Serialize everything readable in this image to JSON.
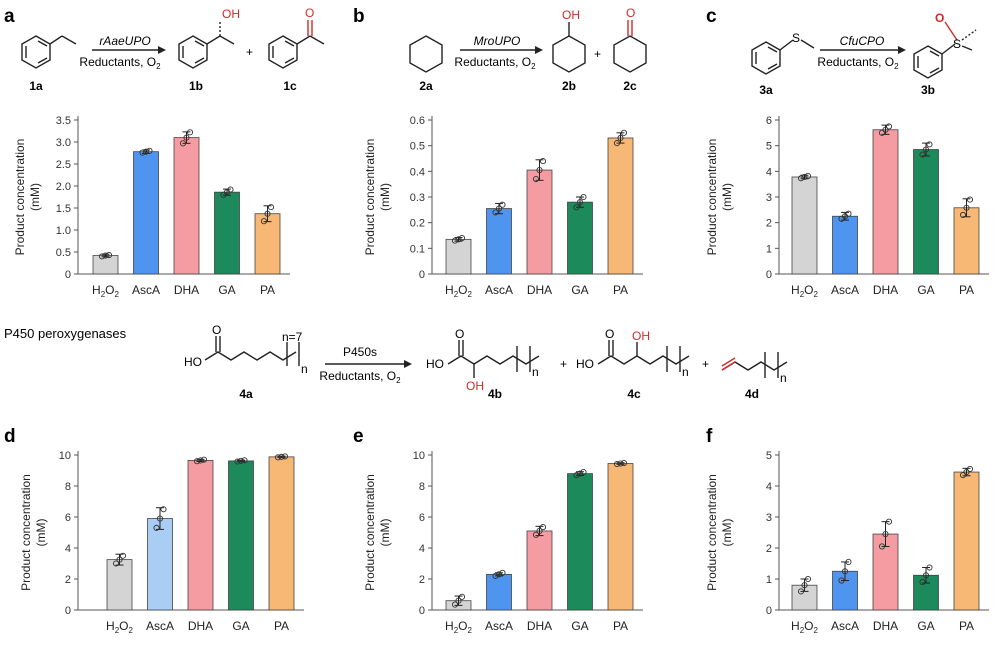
{
  "figure": {
    "panel_letters": [
      "a",
      "b",
      "c",
      "d",
      "e",
      "f"
    ],
    "section_label": "P450 peroxygenases",
    "colors": {
      "H2O2": "#d4d4d4",
      "AscA": "#4f94ef",
      "AscA_light": "#a9cdf5",
      "DHA": "#f59ca2",
      "GA": "#1c8a5a",
      "PA": "#f7b775",
      "red": "#d22a2a"
    }
  },
  "schemes": {
    "a": {
      "enzyme": "rAaeUPO",
      "reductants": "Reductants, O",
      "o2_sub": "2",
      "substrate": "1a",
      "products": [
        "1b",
        "1c"
      ],
      "plus": "+",
      "oh": "OH",
      "o": "O"
    },
    "b": {
      "enzyme": "MroUPO",
      "reductants": "Reductants, O",
      "o2_sub": "2",
      "substrate": "2a",
      "products": [
        "2b",
        "2c"
      ],
      "plus": "+",
      "oh": "OH",
      "o": "O"
    },
    "c": {
      "enzyme": "CfuCPO",
      "reductants": "Reductants, O",
      "o2_sub": "2",
      "substrate": "3a",
      "products": [
        "3b"
      ],
      "s": "S",
      "o": "O"
    },
    "p450": {
      "enzyme": "P450s",
      "reductants": "Reductants, O",
      "o2_sub": "2",
      "substrate": "4a",
      "products": [
        "4b",
        "4c",
        "4d"
      ],
      "n_eq": "n=7",
      "n": "n",
      "ho": "HO",
      "o": "O",
      "oh": "OH",
      "plus": "+"
    }
  },
  "chart_data": [
    {
      "panel": "a",
      "type": "bar",
      "categories": [
        "H2O2",
        "AscA",
        "DHA",
        "GA",
        "PA"
      ],
      "values": [
        0.42,
        2.78,
        3.1,
        1.86,
        1.37
      ],
      "errors": [
        0.03,
        0.04,
        0.13,
        0.07,
        0.18
      ],
      "points": [
        [
          0.4,
          0.42,
          0.43
        ],
        [
          2.76,
          2.78,
          2.8
        ],
        [
          2.97,
          3.1,
          3.22
        ],
        [
          1.8,
          1.86,
          1.92
        ],
        [
          1.2,
          1.37,
          1.52
        ]
      ],
      "ylabel": "Product concentration",
      "yunit": "(mM)",
      "ylim": [
        0,
        3.5
      ],
      "yticks": [
        0,
        0.5,
        1.0,
        1.5,
        2.0,
        2.5,
        3.0,
        3.5
      ],
      "yticklabels": [
        "0",
        "0.5",
        "1.0",
        "1.5",
        "2.0",
        "2.5",
        "3.0",
        "3.5"
      ]
    },
    {
      "panel": "b",
      "type": "bar",
      "categories": [
        "H2O2",
        "AscA",
        "DHA",
        "GA",
        "PA"
      ],
      "values": [
        0.135,
        0.255,
        0.405,
        0.28,
        0.53
      ],
      "errors": [
        0.007,
        0.02,
        0.04,
        0.02,
        0.02
      ],
      "points": [
        [
          0.13,
          0.135,
          0.14
        ],
        [
          0.24,
          0.255,
          0.27
        ],
        [
          0.37,
          0.405,
          0.44
        ],
        [
          0.26,
          0.28,
          0.3
        ],
        [
          0.51,
          0.53,
          0.55
        ]
      ],
      "ylabel": "Product concentration",
      "yunit": "(mM)",
      "ylim": [
        0,
        0.6
      ],
      "yticks": [
        0,
        0.1,
        0.2,
        0.3,
        0.4,
        0.5,
        0.6
      ],
      "yticklabels": [
        "0",
        "0.1",
        "0.2",
        "0.3",
        "0.4",
        "0.5",
        "0.6"
      ]
    },
    {
      "panel": "c",
      "type": "bar",
      "categories": [
        "H2O2",
        "AscA",
        "DHA",
        "GA",
        "PA"
      ],
      "values": [
        3.78,
        2.25,
        5.62,
        4.85,
        2.58
      ],
      "errors": [
        0.07,
        0.15,
        0.18,
        0.25,
        0.35
      ],
      "points": [
        [
          3.73,
          3.78,
          3.82
        ],
        [
          2.15,
          2.25,
          2.35
        ],
        [
          5.5,
          5.62,
          5.75
        ],
        [
          4.65,
          4.85,
          5.05
        ],
        [
          2.3,
          2.58,
          2.9
        ]
      ],
      "ylabel": "Product concentration",
      "yunit": "(mM)",
      "ylim": [
        0,
        6
      ],
      "yticks": [
        0,
        1,
        2,
        3,
        4,
        5,
        6
      ],
      "yticklabels": [
        "0",
        "1",
        "2",
        "3",
        "4",
        "5",
        "6"
      ]
    },
    {
      "panel": "d",
      "type": "bar",
      "categories": [
        "H2O2",
        "AscA",
        "DHA",
        "GA",
        "PA"
      ],
      "values": [
        3.25,
        5.9,
        9.65,
        9.62,
        9.88
      ],
      "errors": [
        0.35,
        0.7,
        0.07,
        0.05,
        0.05
      ],
      "points": [
        [
          3.0,
          3.25,
          3.5
        ],
        [
          5.3,
          5.9,
          6.5
        ],
        [
          9.6,
          9.65,
          9.7
        ],
        [
          9.58,
          9.62,
          9.66
        ],
        [
          9.85,
          9.88,
          9.91
        ]
      ],
      "ylabel": "Product concentration",
      "yunit": "(mM)",
      "ylim": [
        0,
        10
      ],
      "yticks": [
        0,
        2,
        4,
        6,
        8,
        10
      ],
      "yticklabels": [
        "0",
        "2",
        "4",
        "6",
        "8",
        "10"
      ],
      "light_bars": [
        1
      ]
    },
    {
      "panel": "e",
      "type": "bar",
      "categories": [
        "H2O2",
        "AscA",
        "DHA",
        "GA",
        "PA"
      ],
      "values": [
        0.6,
        2.3,
        5.1,
        8.8,
        9.45
      ],
      "errors": [
        0.3,
        0.1,
        0.3,
        0.12,
        0.05
      ],
      "points": [
        [
          0.35,
          0.6,
          0.85
        ],
        [
          2.2,
          2.3,
          2.4
        ],
        [
          4.85,
          5.1,
          5.35
        ],
        [
          8.7,
          8.8,
          8.9
        ],
        [
          9.42,
          9.45,
          9.48
        ]
      ],
      "ylabel": "Product concentration",
      "yunit": "(mM)",
      "ylim": [
        0,
        10
      ],
      "yticks": [
        0,
        2,
        4,
        6,
        8,
        10
      ],
      "yticklabels": [
        "0",
        "2",
        "4",
        "6",
        "8",
        "10"
      ]
    },
    {
      "panel": "f",
      "type": "bar",
      "categories": [
        "H2O2",
        "AscA",
        "DHA",
        "GA",
        "PA"
      ],
      "values": [
        0.8,
        1.25,
        2.45,
        1.12,
        4.45
      ],
      "errors": [
        0.2,
        0.3,
        0.4,
        0.25,
        0.12
      ],
      "points": [
        [
          0.6,
          0.8,
          1.0
        ],
        [
          0.95,
          1.25,
          1.55
        ],
        [
          2.05,
          2.45,
          2.85
        ],
        [
          0.9,
          1.12,
          1.37
        ],
        [
          4.35,
          4.45,
          4.55
        ]
      ],
      "ylabel": "Product concentration",
      "yunit": "(mM)",
      "ylim": [
        0,
        5
      ],
      "yticks": [
        0,
        1,
        2,
        3,
        4,
        5
      ],
      "yticklabels": [
        "0",
        "1",
        "2",
        "3",
        "4",
        "5"
      ]
    }
  ]
}
